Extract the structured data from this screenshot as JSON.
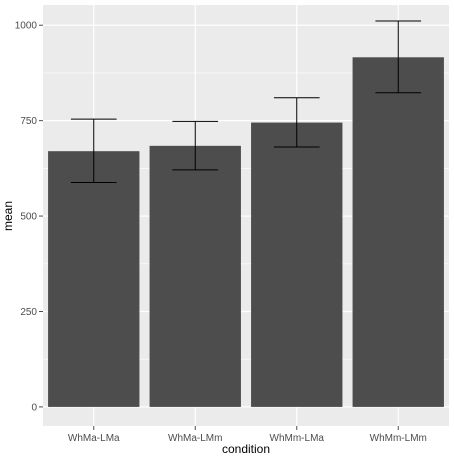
{
  "chart_data": {
    "type": "bar",
    "title": "",
    "xlabel": "condition",
    "ylabel": "mean",
    "categories": [
      "WhMa-LMa",
      "WhMa-LMm",
      "WhMm-LMa",
      "WhMm-LMm"
    ],
    "values": [
      670,
      684,
      745,
      916
    ],
    "error_low": [
      588,
      621,
      681,
      823
    ],
    "error_high": [
      754,
      748,
      810,
      1011
    ],
    "ylim": [
      -50,
      1053
    ],
    "yticks": [
      0,
      250,
      500,
      750,
      1000
    ],
    "grid": true,
    "colors": {
      "panel_background": "#ebebeb",
      "gridline": "#ffffff",
      "bar_fill": "#4d4d4d",
      "errorbar": "#000000"
    }
  }
}
